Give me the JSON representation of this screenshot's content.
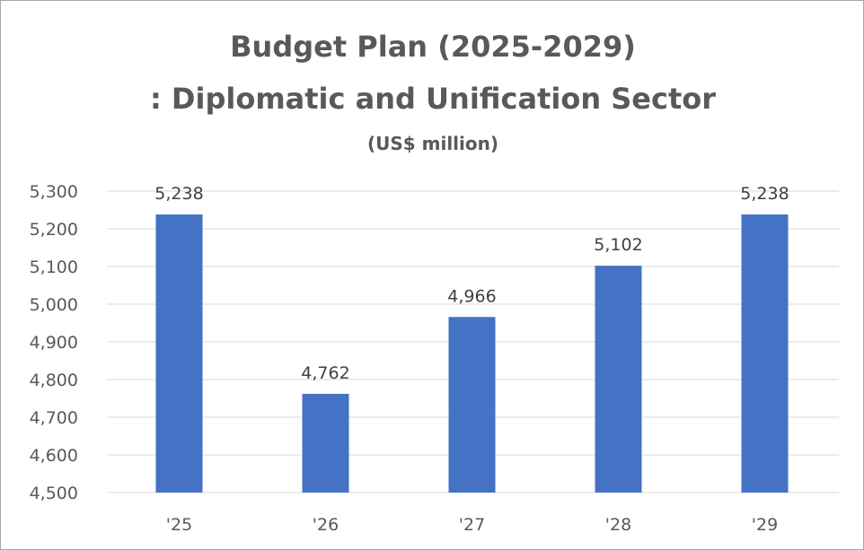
{
  "chart_data": {
    "type": "bar",
    "title": "Budget Plan (2025-2029)",
    "subtitle": ": Diplomatic and Unification Sector",
    "unit": "(US$ million)",
    "categories": [
      "'25",
      "'26",
      "'27",
      "'28",
      "'29"
    ],
    "values": [
      5238,
      4762,
      4966,
      5102,
      5238
    ],
    "data_labels": [
      "5,238",
      "4,762",
      "4,966",
      "5,102",
      "5,238"
    ],
    "ylim": [
      4500,
      5300
    ],
    "yticks": [
      4500,
      4600,
      4700,
      4800,
      4900,
      5000,
      5100,
      5200,
      5300
    ],
    "ytick_labels": [
      "4,500",
      "4,600",
      "4,700",
      "4,800",
      "4,900",
      "5,000",
      "5,100",
      "5,200",
      "5,300"
    ],
    "grid": true,
    "legend": "none",
    "bar_color": "#4472c4",
    "grid_color": "#d9d9d9"
  }
}
